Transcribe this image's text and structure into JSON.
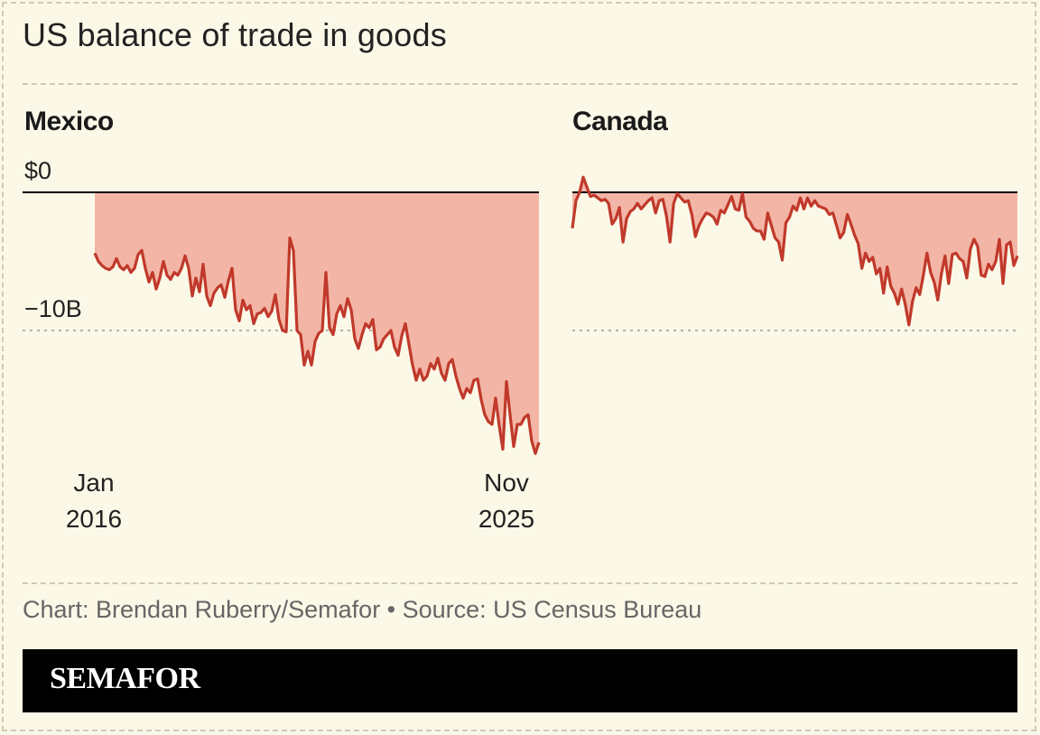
{
  "title": "US balance of trade in goods",
  "source": "Chart: Brendan Ruberry/Semafor • Source: US Census Bureau",
  "brand": "SEMAFOR",
  "colors": {
    "background": "#fbf8e7",
    "line": "#c0392b",
    "fill": "#f3b6a6",
    "zero_line": "#000000",
    "grid": "#9a9a9a",
    "brand_bar": "#000000"
  },
  "labels": {
    "y_zero": "$0",
    "y_minus10": "−10B",
    "x_start_month": "Jan",
    "x_start_year": "2016",
    "x_end_month": "Nov",
    "x_end_year": "2025"
  },
  "chart_data": [
    {
      "type": "area",
      "title": "Mexico",
      "x_start": "2016-01",
      "x_end": "2025-11",
      "ylim": [
        -18.5,
        2.5
      ],
      "y_ticks": [
        0,
        -10
      ],
      "grid": "dashed line at -10B",
      "series": [
        {
          "values": [
            -4.4,
            -5.0,
            -5.3,
            -5.5,
            -5.6,
            -5.4,
            -4.8,
            -5.4,
            -5.6,
            -5.3,
            -5.8,
            -5.5,
            -4.5,
            -4.2,
            -5.5,
            -6.5,
            -5.8,
            -7.0,
            -6.2,
            -5.0,
            -6.0,
            -6.3,
            -5.8,
            -6.0,
            -5.5,
            -4.6,
            -5.5,
            -7.5,
            -6.2,
            -7.2,
            -5.2,
            -7.5,
            -8.2,
            -7.3,
            -6.9,
            -6.7,
            -7.6,
            -6.4,
            -5.5,
            -8.5,
            -9.3,
            -7.8,
            -8.5,
            -8.2,
            -9.5,
            -8.8,
            -8.7,
            -8.4,
            -9.0,
            -8.6,
            -7.4,
            -9.2,
            -10.0,
            -10.1,
            -3.3,
            -4.2,
            -10.0,
            -10.3,
            -12.5,
            -11.5,
            -12.5,
            -10.8,
            -10.2,
            -10.0,
            -5.8,
            -9.8,
            -10.3,
            -8.8,
            -8.2,
            -9.0,
            -7.7,
            -8.5,
            -10.6,
            -11.3,
            -10.3,
            -9.5,
            -9.8,
            -9.2,
            -11.4,
            -11.2,
            -10.6,
            -10.3,
            -10.0,
            -11.2,
            -11.8,
            -10.4,
            -9.5,
            -11.0,
            -12.5,
            -13.6,
            -12.8,
            -13.6,
            -13.3,
            -12.4,
            -12.8,
            -12.0,
            -13.1,
            -13.6,
            -12.4,
            -12.1,
            -13.3,
            -14.2,
            -14.9,
            -14.2,
            -14.5,
            -13.6,
            -13.5,
            -15.0,
            -16.1,
            -16.6,
            -16.8,
            -14.9,
            -16.9,
            -18.6,
            -13.7,
            -16.1,
            -18.4,
            -16.8,
            -16.8,
            -16.3,
            -16.1,
            -18.0,
            -18.9,
            -18.1
          ]
        }
      ]
    },
    {
      "type": "area",
      "title": "Canada",
      "x_start": "2016-01",
      "x_end": "2025-11",
      "ylim": [
        -18.5,
        2.5
      ],
      "y_ticks": [
        0,
        -10
      ],
      "grid": "dashed line at -10B",
      "series": [
        {
          "values": [
            -2.6,
            -0.6,
            0.0,
            1.1,
            0.4,
            -0.3,
            -0.2,
            -0.4,
            -0.6,
            -0.5,
            -0.8,
            -2.3,
            -1.9,
            -1.1,
            -3.6,
            -1.9,
            -1.4,
            -1.2,
            -0.8,
            -1.2,
            -0.9,
            -0.6,
            -0.4,
            -1.5,
            -0.6,
            -0.5,
            -1.7,
            -3.6,
            -0.8,
            -0.1,
            -0.4,
            -0.7,
            -0.6,
            -1.6,
            -3.2,
            -2.4,
            -1.9,
            -1.5,
            -1.6,
            -1.8,
            -2.3,
            -1.3,
            -1.5,
            -0.9,
            -0.3,
            -1.2,
            -1.3,
            -0.1,
            -1.8,
            -2.1,
            -2.6,
            -2.8,
            -2.8,
            -3.4,
            -1.5,
            -2.4,
            -3.3,
            -3.6,
            -4.9,
            -2.2,
            -1.8,
            -1.0,
            -1.3,
            -0.4,
            -1.2,
            -0.4,
            -1.0,
            -0.6,
            -1.0,
            -1.1,
            -1.2,
            -1.6,
            -1.5,
            -2.4,
            -3.3,
            -2.9,
            -1.6,
            -2.3,
            -3.1,
            -3.7,
            -5.5,
            -4.4,
            -5.0,
            -4.7,
            -5.9,
            -5.5,
            -7.3,
            -5.4,
            -6.8,
            -7.3,
            -8.1,
            -7.0,
            -8.1,
            -9.6,
            -7.9,
            -6.9,
            -7.4,
            -6.0,
            -4.4,
            -5.8,
            -6.5,
            -7.8,
            -5.9,
            -4.6,
            -6.6,
            -4.5,
            -4.4,
            -4.8,
            -5.0,
            -6.2,
            -4.1,
            -3.4,
            -3.9,
            -6.0,
            -6.1,
            -5.2,
            -5.6,
            -5.0,
            -3.4,
            -6.6,
            -3.8,
            -3.6,
            -5.3,
            -4.6
          ]
        }
      ]
    }
  ]
}
